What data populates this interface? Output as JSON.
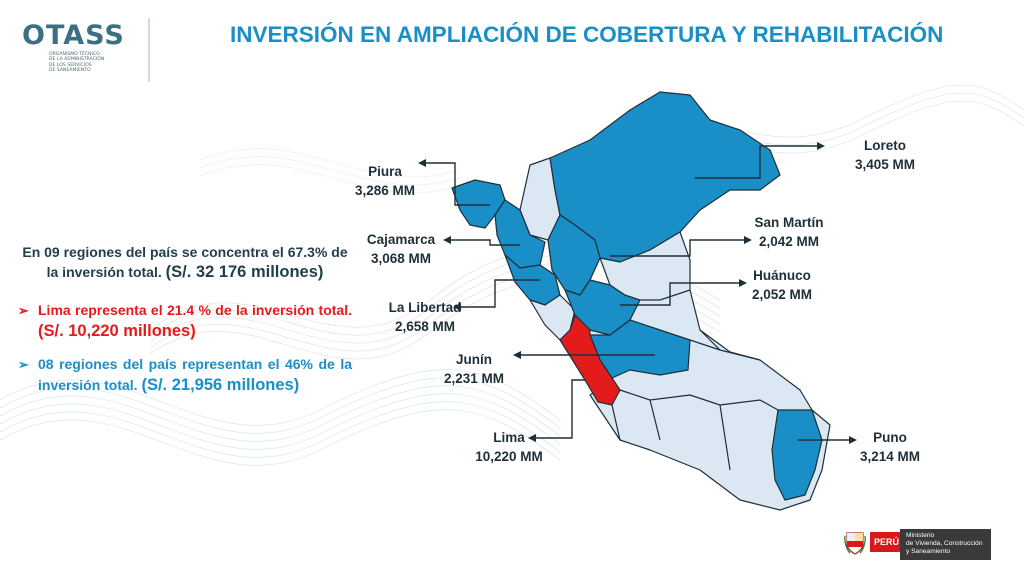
{
  "logo": {
    "name": "OTASS",
    "subtitle_lines": [
      "ORGANISMO TÉCNICO",
      "DE LA ADMINISTRACIÓN",
      "DE LOS SERVICIOS",
      "DE SANEAMIENTO"
    ]
  },
  "title": "INVERSIÓN EN AMPLIACIÓN DE COBERTURA Y REHABILITACIÓN",
  "intro": {
    "text": "En 09 regiones del país se concentra el 67.3% de la inversión total.",
    "highlight": "(S/. 32 176 millones)"
  },
  "bullets": [
    {
      "text": "Lima representa el 21.4 % de la inversión total.",
      "highlight": "(S/. 10,220 millones)"
    },
    {
      "text": "08 regiones del país representan el 46% de la inversión total.",
      "highlight": "(S/. 21,956 millones)"
    }
  ],
  "regions": [
    {
      "name": "Piura",
      "value": "3,286 MM"
    },
    {
      "name": "Cajamarca",
      "value": "3,068 MM"
    },
    {
      "name": "La Libertad",
      "value": "2,658 MM"
    },
    {
      "name": "Junín",
      "value": "2,231 MM"
    },
    {
      "name": "Lima",
      "value": "10,220 MM"
    },
    {
      "name": "Loreto",
      "value": "3,405 MM"
    },
    {
      "name": "San Martín",
      "value": "2,042 MM"
    },
    {
      "name": "Huánuco",
      "value": "2,052 MM"
    },
    {
      "name": "Puno",
      "value": "3,214 MM"
    }
  ],
  "colors": {
    "highlight_region": "#1a8fc7",
    "lima_region": "#e31b1b",
    "other_region": "#dbe8f4",
    "title": "#1a8fc7"
  },
  "footer": {
    "country": "PERÚ",
    "ministry_lines": [
      "Ministerio",
      "de Vivienda, Construcción",
      "y Saneamiento"
    ]
  }
}
